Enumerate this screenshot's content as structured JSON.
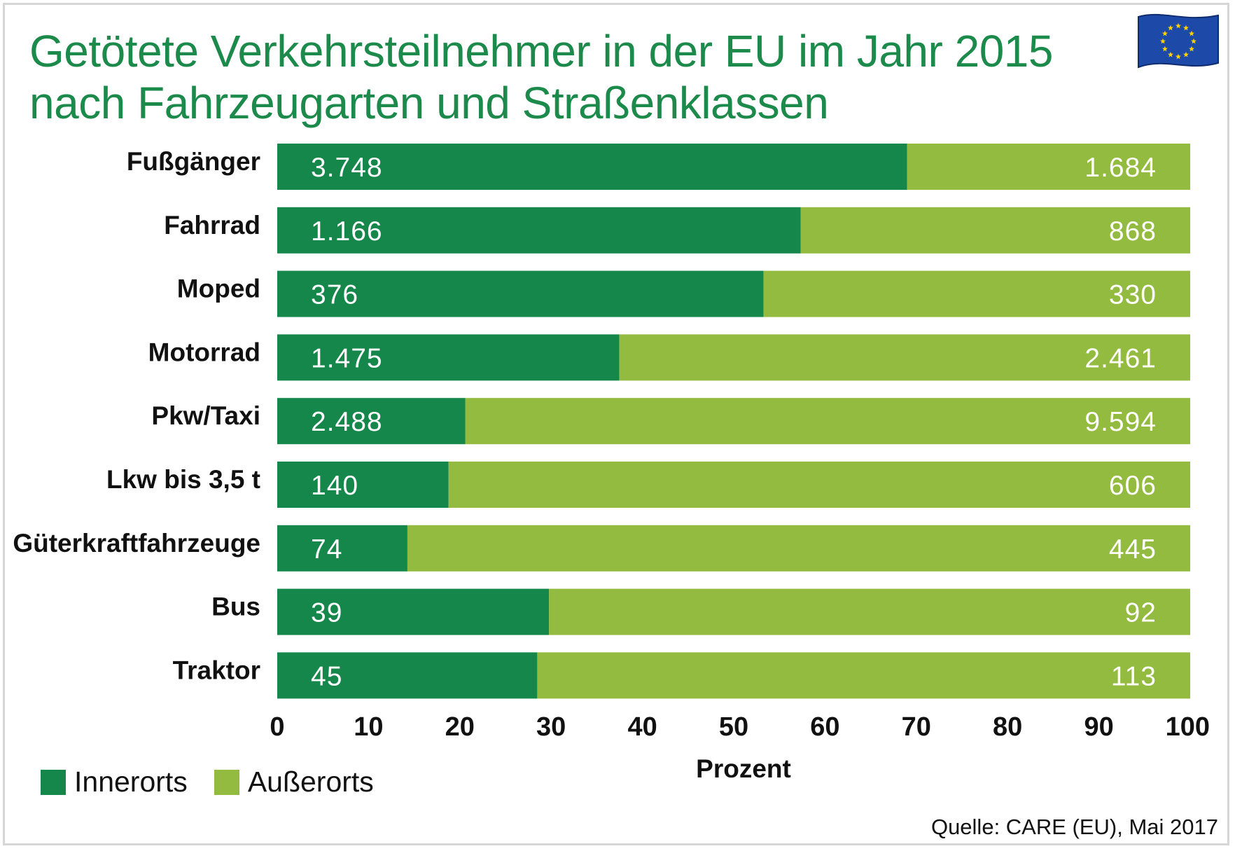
{
  "title_lines": [
    "Getötete Verkehrsteilnehmer in der EU im Jahr 2015",
    "nach Fahrzeugarten und Straßenklassen"
  ],
  "flag_icon": "eu-flag-icon",
  "colors": {
    "innerorts": "#15874b",
    "ausserorts": "#93bb3f",
    "title": "#1b8a4a",
    "flag_blue": "#1d4aa8",
    "flag_star": "#ffd200"
  },
  "chart_data": {
    "type": "bar",
    "orientation": "horizontal",
    "stacked": "percent",
    "title": "Getötete Verkehrsteilnehmer in der EU im Jahr 2015 nach Fahrzeugarten und Straßenklassen",
    "categories": [
      "Fußgänger",
      "Fahrrad",
      "Moped",
      "Motorrad",
      "Pkw/Taxi",
      "Lkw bis 3,5 t",
      "Güterkraftfahrzeuge",
      "Bus",
      "Traktor"
    ],
    "series": [
      {
        "name": "Innerorts",
        "values": [
          3748,
          1166,
          376,
          1475,
          2488,
          140,
          74,
          39,
          45
        ],
        "labels": [
          "3.748",
          "1.166",
          "376",
          "1.475",
          "2.488",
          "140",
          "74",
          "39",
          "45"
        ]
      },
      {
        "name": "Außerorts",
        "values": [
          1684,
          868,
          330,
          2461,
          9594,
          606,
          445,
          92,
          113
        ],
        "labels": [
          "1.684",
          "868",
          "330",
          "2.461",
          "9.594",
          "606",
          "445",
          "92",
          "113"
        ]
      }
    ],
    "xticks": [
      "0",
      "10",
      "20",
      "30",
      "40",
      "50",
      "60",
      "70",
      "80",
      "90",
      "100"
    ],
    "xlim": [
      0,
      100
    ],
    "xlabel": "Prozent",
    "ylabel": "",
    "legend_position": "bottom-left"
  },
  "legend": [
    {
      "label": "Innerorts"
    },
    {
      "label": "Außerorts"
    }
  ],
  "source": "Quelle: CARE (EU), Mai 2017"
}
